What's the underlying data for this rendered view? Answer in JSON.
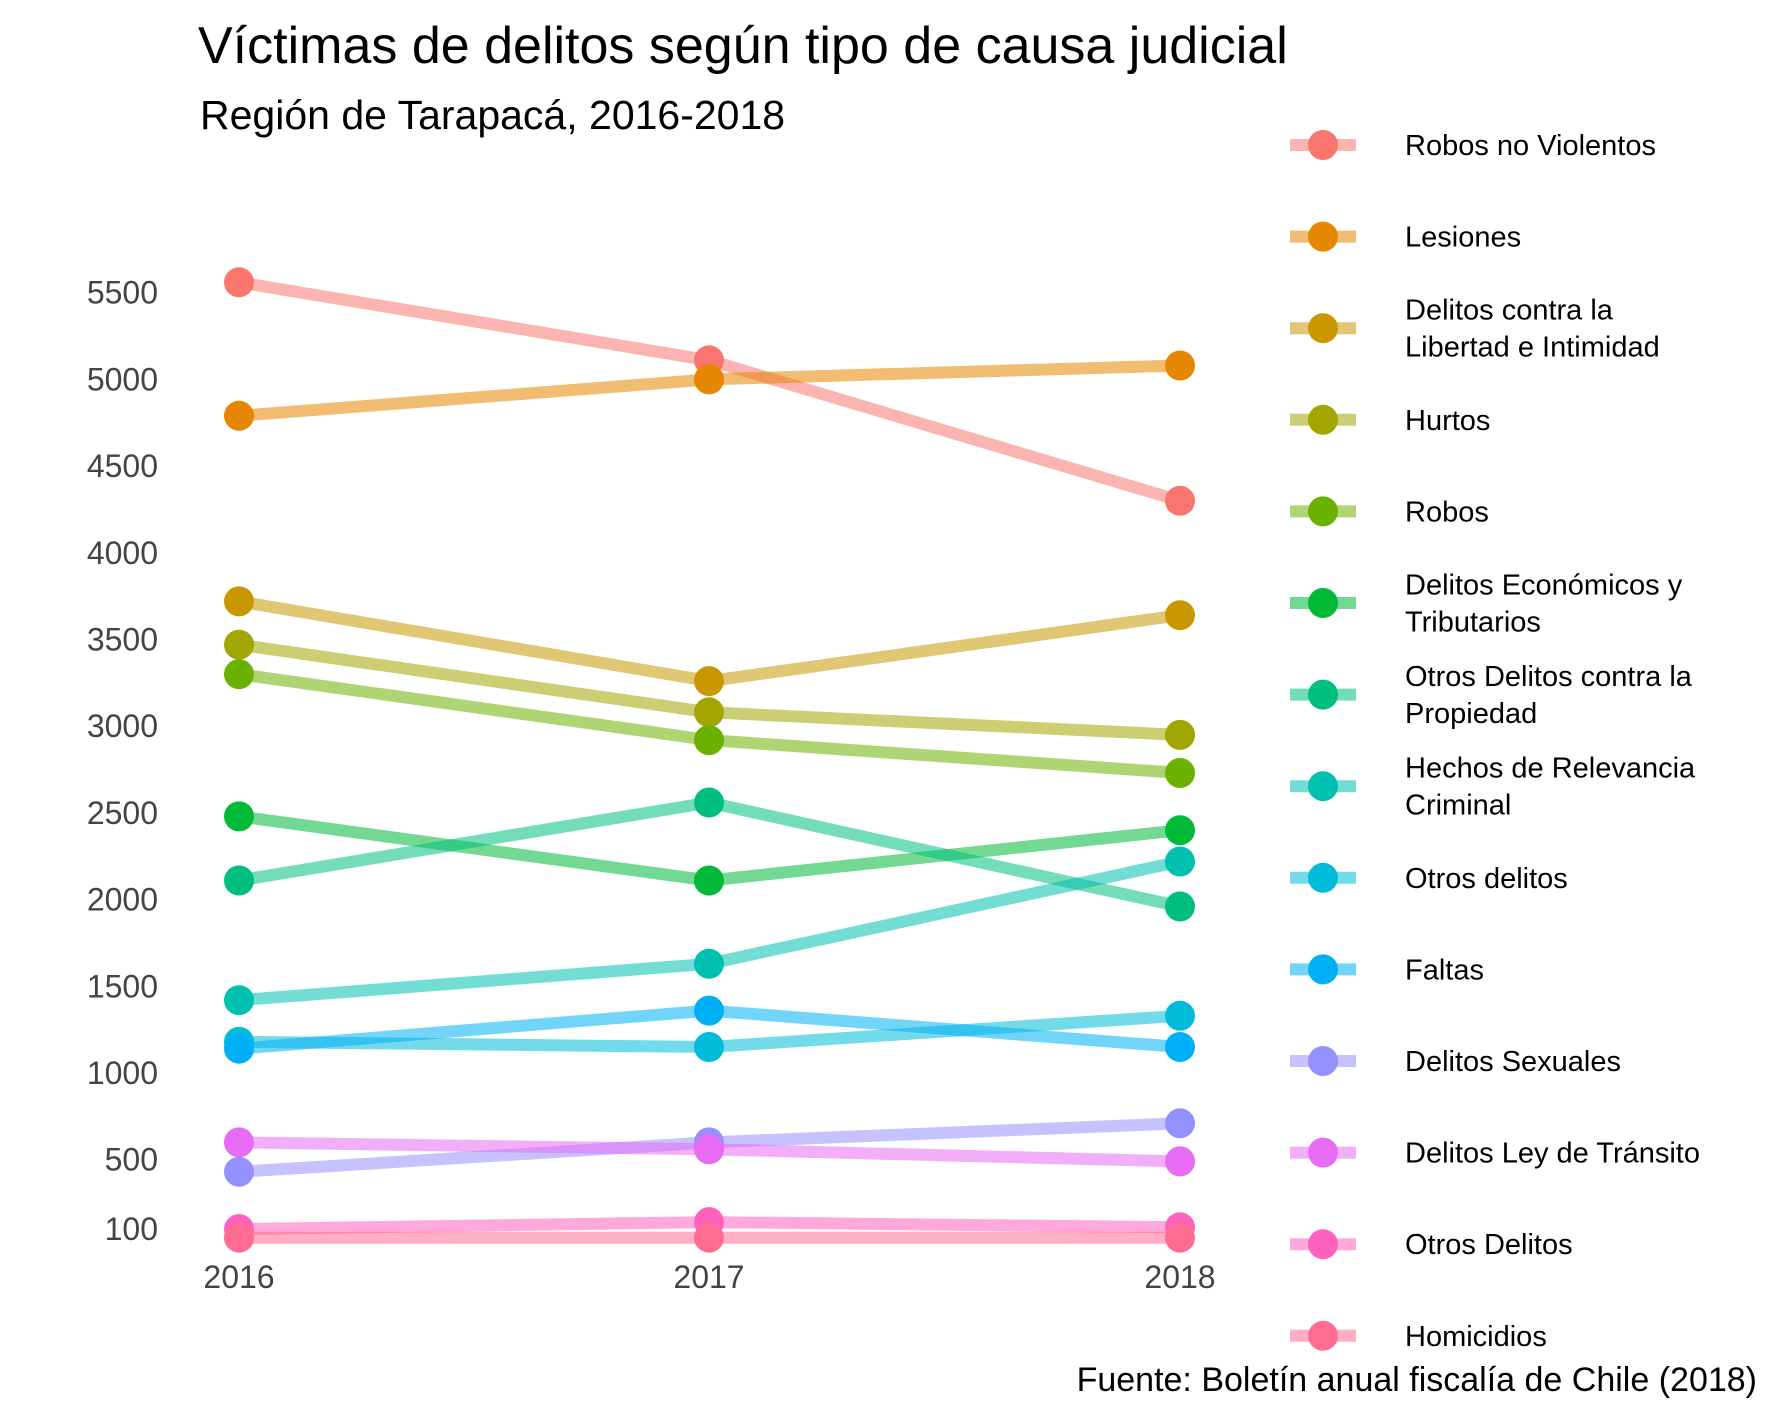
{
  "chart_data": {
    "type": "line",
    "title": "Víctimas de delitos según tipo de causa judicial",
    "subtitle": "Región de Tarapacá, 2016-2018",
    "caption": "Fuente: Boletín anual fiscalía de Chile (2018)",
    "xlabel": "",
    "ylabel": "",
    "x": [
      "2016",
      "2017",
      "2018"
    ],
    "y_ticks": [
      100,
      500,
      1000,
      1500,
      2000,
      2500,
      3000,
      3500,
      4000,
      4500,
      5000,
      5500
    ],
    "ylim": [
      -100,
      5800
    ],
    "grid": false,
    "legend_position": "right",
    "series": [
      {
        "name": "Robos no Violentos",
        "color": "#F8766D",
        "values": [
          5560,
          5110,
          4300
        ]
      },
      {
        "name": "Lesiones",
        "color": "#E58700",
        "values": [
          4790,
          5000,
          5080
        ]
      },
      {
        "name": "Delitos contra la Libertad e Intimidad",
        "color": "#C99800",
        "values": [
          3720,
          3260,
          3640
        ]
      },
      {
        "name": "Hurtos",
        "color": "#A3A500",
        "values": [
          3470,
          3080,
          2950
        ]
      },
      {
        "name": "Robos",
        "color": "#6BB100",
        "values": [
          3300,
          2920,
          2730
        ]
      },
      {
        "name": "Delitos Económicos y Tributarios",
        "color": "#00BA38",
        "values": [
          2480,
          2110,
          2400
        ]
      },
      {
        "name": "Otros Delitos contra la Propiedad",
        "color": "#00BF7D",
        "values": [
          2110,
          2560,
          1960
        ]
      },
      {
        "name": "Hechos de Relevancia Criminal",
        "color": "#00C0AF",
        "values": [
          1420,
          1630,
          2220
        ]
      },
      {
        "name": "Otros delitos",
        "color": "#00BCD8",
        "values": [
          1180,
          1150,
          1330
        ]
      },
      {
        "name": "Faltas",
        "color": "#00B0F6",
        "values": [
          1140,
          1360,
          1150
        ]
      },
      {
        "name": "Delitos Sexuales",
        "color": "#9590FF",
        "values": [
          430,
          600,
          710
        ]
      },
      {
        "name": "Delitos Ley de Tránsito",
        "color": "#E76BF3",
        "values": [
          600,
          560,
          490
        ]
      },
      {
        "name": "Otros Delitos",
        "color": "#FF62BC",
        "values": [
          100,
          140,
          110
        ]
      },
      {
        "name": "Homicidios",
        "color": "#FF6C91",
        "values": [
          50,
          50,
          50
        ]
      }
    ]
  }
}
